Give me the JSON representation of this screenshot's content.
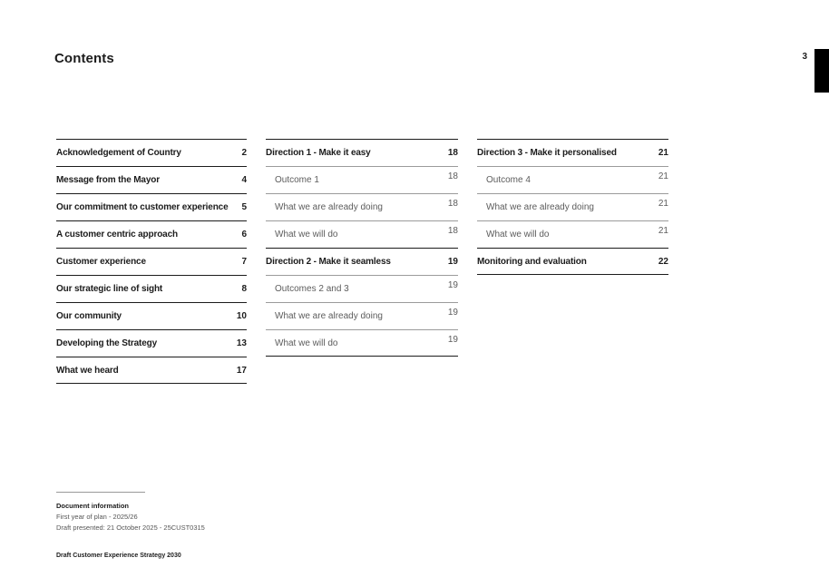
{
  "header": {
    "title": "Contents",
    "page_number": "3"
  },
  "toc": {
    "columns": [
      {
        "entries": [
          {
            "label": "Acknowledgement of Country",
            "page": "2",
            "level": "top"
          },
          {
            "label": "Message from the Mayor",
            "page": "4",
            "level": "top"
          },
          {
            "label": "Our commitment to customer experience",
            "page": "5",
            "level": "top"
          },
          {
            "label": "A customer centric approach",
            "page": "6",
            "level": "top"
          },
          {
            "label": "Customer experience",
            "page": "7",
            "level": "top"
          },
          {
            "label": "Our strategic line of sight",
            "page": "8",
            "level": "top"
          },
          {
            "label": "Our community",
            "page": "10",
            "level": "top"
          },
          {
            "label": "Developing the Strategy",
            "page": "13",
            "level": "top"
          },
          {
            "label": "What we heard",
            "page": "17",
            "level": "top"
          }
        ]
      },
      {
        "entries": [
          {
            "label": "Direction 1 - Make it easy",
            "page": "18",
            "level": "top"
          },
          {
            "label": "Outcome 1",
            "page": "18",
            "level": "sub"
          },
          {
            "label": "What we are already doing",
            "page": "18",
            "level": "sub"
          },
          {
            "label": "What we will do",
            "page": "18",
            "level": "sub"
          },
          {
            "label": "Direction 2 - Make it seamless",
            "page": "19",
            "level": "top"
          },
          {
            "label": "Outcomes 2 and 3",
            "page": "19",
            "level": "sub"
          },
          {
            "label": "What we are already doing",
            "page": "19",
            "level": "sub"
          },
          {
            "label": "What we will do",
            "page": "19",
            "level": "sub"
          }
        ]
      },
      {
        "entries": [
          {
            "label": "Direction 3 - Make it personalised",
            "page": "21",
            "level": "top"
          },
          {
            "label": "Outcome 4",
            "page": "21",
            "level": "sub"
          },
          {
            "label": "What we are already doing",
            "page": "21",
            "level": "sub"
          },
          {
            "label": "What we will do",
            "page": "21",
            "level": "sub"
          },
          {
            "label": "Monitoring and evaluation",
            "page": "22",
            "level": "top"
          }
        ]
      }
    ]
  },
  "footer": {
    "document_info_heading": "Document information",
    "first_year_line": "First year of plan - 2025/26",
    "draft_presented_line": "Draft presented: 21 October 2025 - 25CUST0315",
    "footer_title": "Draft Customer Experience Strategy 2030"
  },
  "colors": {
    "text_primary": "#1c1c1c",
    "text_secondary": "#5c5c5c",
    "rule_dark": "#1c1c1c",
    "rule_light": "#9b9b9b",
    "tab_marker": "#000000",
    "background": "#ffffff"
  }
}
